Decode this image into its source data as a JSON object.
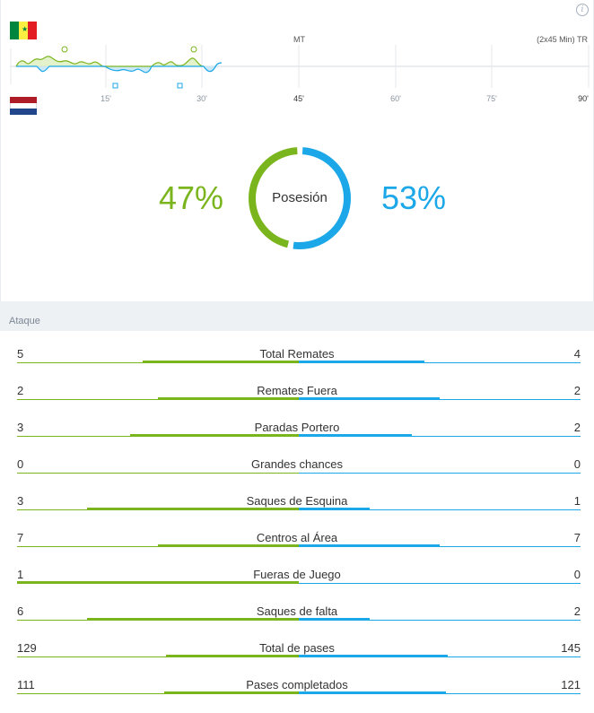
{
  "teams": {
    "home": {
      "flag": "senegal-flag",
      "color": "#7ab51d",
      "flag_colors": [
        "#00853f",
        "#fdef42",
        "#e31b23"
      ]
    },
    "away": {
      "flag": "netherlands-flag",
      "color": "#1ba7e8",
      "flag_colors": [
        "#ae1c28",
        "#ffffff",
        "#21468b"
      ]
    }
  },
  "timeline": {
    "label_mt": "MT",
    "label_tr": "(2x45 Min) TR",
    "ticks": [
      "15'",
      "30'",
      "45'",
      "60'",
      "75'",
      "90'"
    ]
  },
  "possession": {
    "label": "Posesión",
    "home": "47%",
    "away": "53%",
    "home_value": 47,
    "away_value": 53
  },
  "section": {
    "title": "Ataque"
  },
  "stats": [
    {
      "name": "Total Remates",
      "home": "5",
      "away": "4",
      "home_n": 5,
      "away_n": 4
    },
    {
      "name": "Remates Fuera",
      "home": "2",
      "away": "2",
      "home_n": 2,
      "away_n": 2
    },
    {
      "name": "Paradas Portero",
      "home": "3",
      "away": "2",
      "home_n": 3,
      "away_n": 2
    },
    {
      "name": "Grandes chances",
      "home": "0",
      "away": "0",
      "home_n": 0,
      "away_n": 0
    },
    {
      "name": "Saques de Esquina",
      "home": "3",
      "away": "1",
      "home_n": 3,
      "away_n": 1
    },
    {
      "name": "Centros al Área",
      "home": "7",
      "away": "7",
      "home_n": 7,
      "away_n": 7
    },
    {
      "name": "Fueras de Juego",
      "home": "1",
      "away": "0",
      "home_n": 1,
      "away_n": 0
    },
    {
      "name": "Saques de falta",
      "home": "6",
      "away": "2",
      "home_n": 6,
      "away_n": 2
    },
    {
      "name": "Total de pases",
      "home": "129",
      "away": "145",
      "home_n": 129,
      "away_n": 145
    },
    {
      "name": "Pases completados",
      "home": "111",
      "away": "121",
      "home_n": 111,
      "away_n": 121
    }
  ]
}
